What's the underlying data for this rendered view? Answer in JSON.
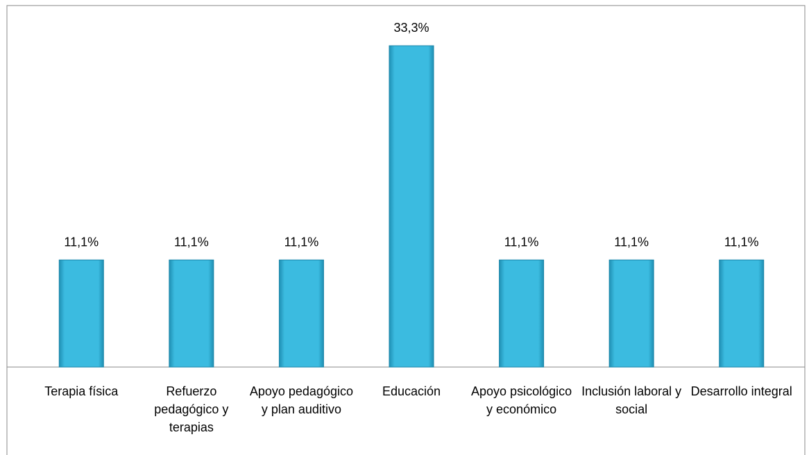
{
  "chart_data": {
    "type": "bar",
    "categories": [
      "Terapia física",
      "Refuerzo pedagógico y terapias",
      "Apoyo pedagógico y plan auditivo",
      "Educación",
      "Apoyo psicológico y económico",
      "Inclusión laboral y social",
      "Desarrollo integral"
    ],
    "values": [
      11.1,
      11.1,
      11.1,
      33.3,
      11.1,
      11.1,
      11.1
    ],
    "value_labels": [
      "11,1%",
      "11,1%",
      "11,1%",
      "33,3%",
      "11,1%",
      "11,1%",
      "11,1%"
    ],
    "color": "#3bbbe0"
  }
}
